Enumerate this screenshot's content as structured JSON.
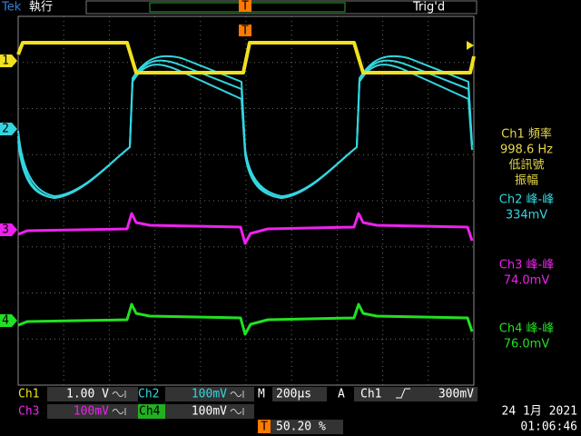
{
  "header": {
    "brand": "Tek",
    "status": "執行",
    "trigger_state": "Trig'd",
    "trigger_marker": "T"
  },
  "channel_markers": [
    "1",
    "2",
    "3",
    "4"
  ],
  "measurements": [
    {
      "label": "Ch1 頻率",
      "value": "998.6 Hz",
      "note": [
        "低訊號",
        "振幅"
      ]
    },
    {
      "label": "Ch2 峰-峰",
      "value": "334mV"
    },
    {
      "label": "Ch3 峰-峰",
      "value": "74.0mV"
    },
    {
      "label": "Ch4 峰-峰",
      "value": "76.0mV"
    }
  ],
  "footer": {
    "ch1": {
      "name": "Ch1",
      "scale": "1.00 V"
    },
    "ch2": {
      "name": "Ch2",
      "scale": "100mV"
    },
    "ch3": {
      "name": "Ch3",
      "scale": "100mV"
    },
    "ch4": {
      "name": "Ch4",
      "scale": "100mV"
    },
    "timebase": {
      "label": "M",
      "value": "200µs"
    },
    "trigger": {
      "label": "A",
      "source": "Ch1",
      "level": "300mV"
    },
    "position": {
      "marker": "T",
      "value": "50.20 %"
    },
    "date": "24 1月  2021",
    "time": "01:06:46"
  }
}
